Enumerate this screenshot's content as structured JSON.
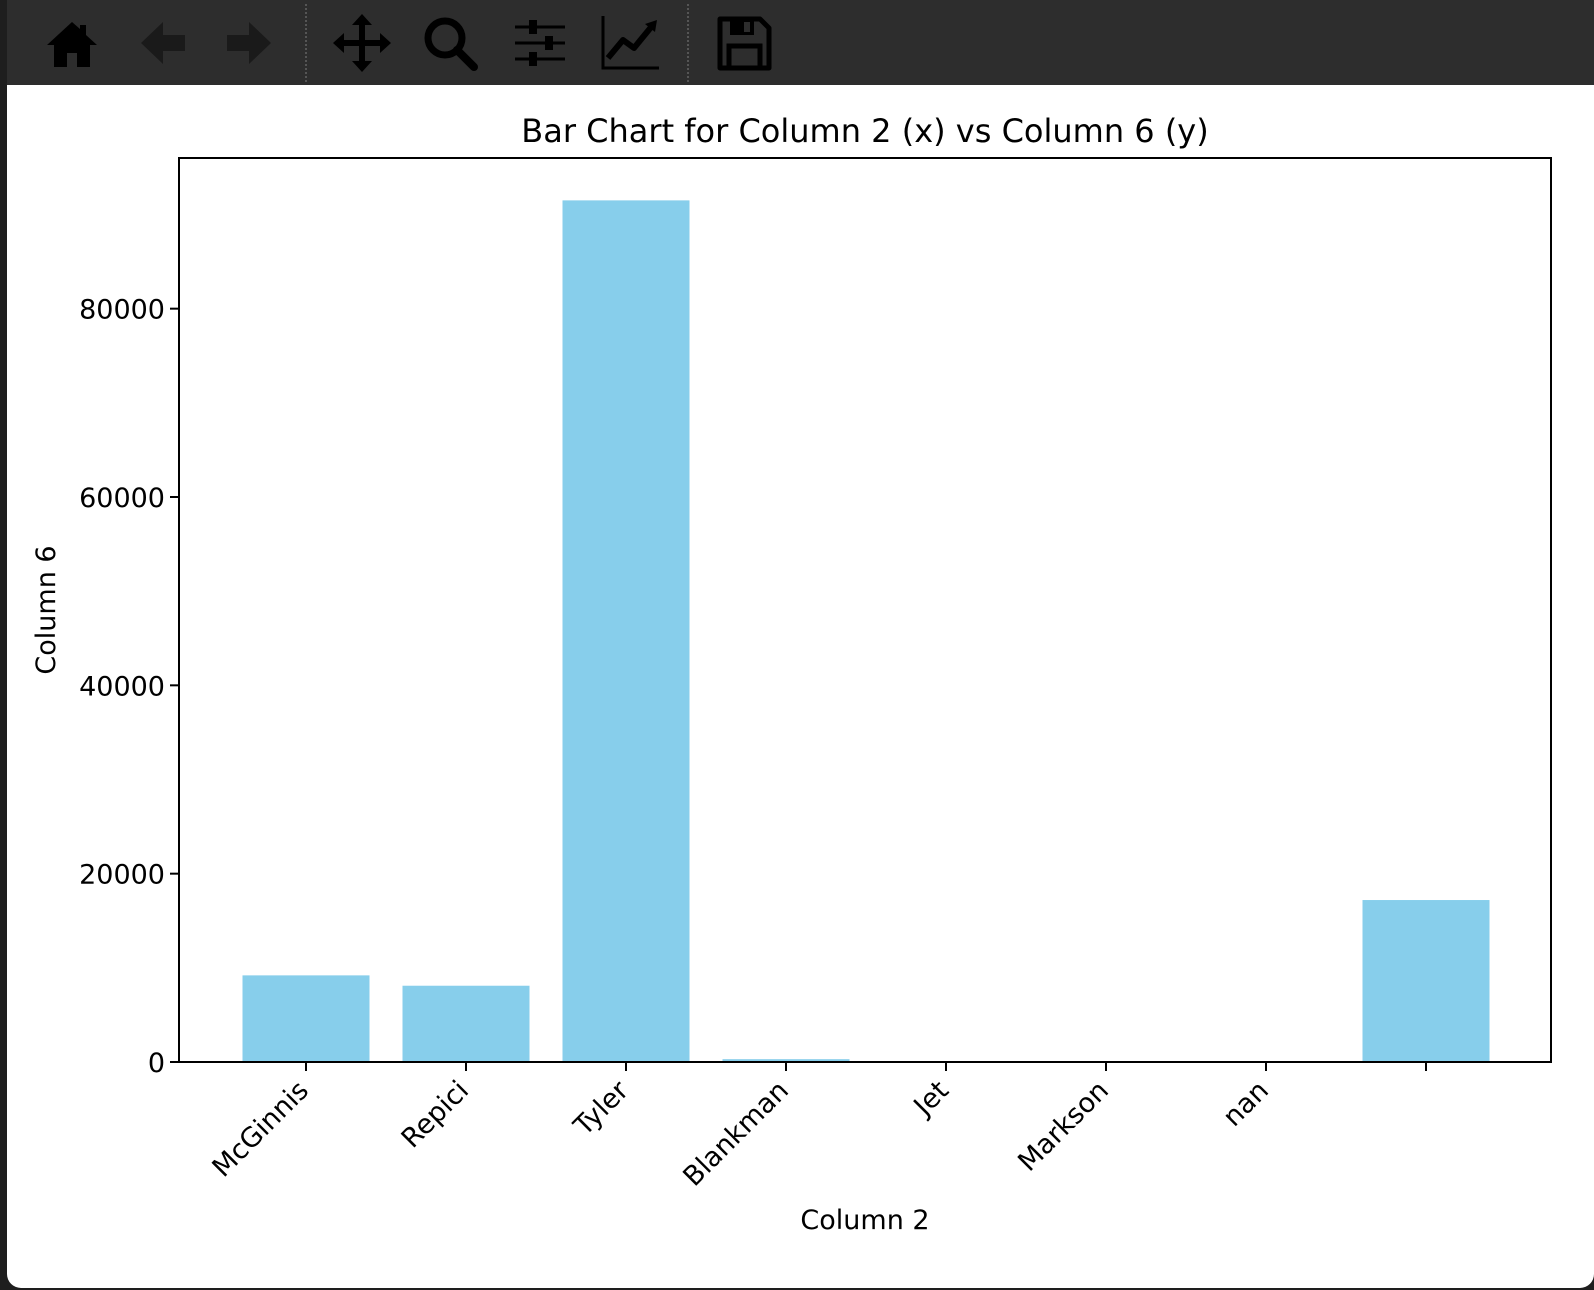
{
  "toolbar": {
    "buttons": [
      {
        "name": "home-icon"
      },
      {
        "name": "back-icon"
      },
      {
        "name": "forward-icon"
      },
      {
        "name": "pan-icon"
      },
      {
        "name": "zoom-icon"
      },
      {
        "name": "configure-subplots-icon"
      },
      {
        "name": "edit-axis-icon"
      },
      {
        "name": "save-icon"
      }
    ],
    "background": "#2d2d2d"
  },
  "chart_data": {
    "type": "bar",
    "title": "Bar Chart for Column 2 (x) vs Column 6 (y)",
    "xlabel": "Column 2",
    "ylabel": "Column 6",
    "categories": [
      "McGinnis",
      "Repici",
      "Tyler",
      "Blankman",
      "Jet",
      "Markson",
      "nan",
      ""
    ],
    "values": [
      9200,
      8100,
      91500,
      300,
      0,
      0,
      0,
      17200
    ],
    "ylim": [
      0,
      96000
    ],
    "yticks": [
      0,
      20000,
      40000,
      60000,
      80000
    ],
    "bar_color": "#87ceeb",
    "grid": false,
    "legend": "none"
  }
}
